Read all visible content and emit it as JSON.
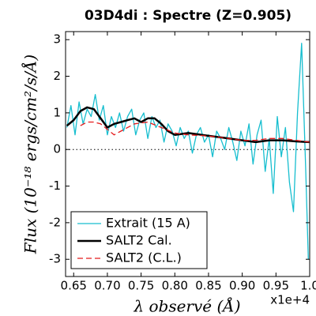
{
  "chart_data": {
    "type": "line",
    "title": "03D4di : Spectre (Z=0.905)",
    "x_label": "λ observé (Å)",
    "y_label": "Flux (10⁻¹⁸ ergs/cm²/s/Å)",
    "x_offset_label": "x1e+4",
    "xlim": [
      0.638,
      1.0
    ],
    "ylim": [
      -3.47,
      3.22
    ],
    "xticks": [
      0.65,
      {
        "value": 0.7,
        "label": "0.70"
      },
      0.75,
      {
        "value": 0.8,
        "label": "0.80"
      },
      0.85,
      {
        "value": 0.9,
        "label": "0.90"
      },
      0.95,
      {
        "value": 1,
        "label": "1.0"
      }
    ],
    "yticks": [
      -3,
      -2,
      -1,
      0,
      1,
      2,
      3
    ],
    "hline": 0,
    "legend": "lower left",
    "series": [
      {
        "name": "Extrait (15 A)",
        "color": "#17becf",
        "style": "solid",
        "width": 1.3,
        "x": [
          0.64,
          0.646,
          0.652,
          0.658,
          0.664,
          0.67,
          0.676,
          0.682,
          0.688,
          0.694,
          0.7,
          0.706,
          0.712,
          0.718,
          0.724,
          0.73,
          0.736,
          0.742,
          0.748,
          0.754,
          0.76,
          0.766,
          0.772,
          0.778,
          0.784,
          0.79,
          0.796,
          0.802,
          0.808,
          0.814,
          0.82,
          0.826,
          0.832,
          0.838,
          0.844,
          0.85,
          0.856,
          0.862,
          0.868,
          0.874,
          0.88,
          0.886,
          0.892,
          0.898,
          0.904,
          0.91,
          0.916,
          0.922,
          0.928,
          0.934,
          0.94,
          0.946,
          0.952,
          0.958,
          0.964,
          0.97,
          0.976,
          0.982,
          0.988,
          0.994,
          0.998
        ],
        "values": [
          0.6,
          1.2,
          0.4,
          1.3,
          0.7,
          1.1,
          0.9,
          1.5,
          0.8,
          1.2,
          0.4,
          0.9,
          0.6,
          1.0,
          0.5,
          0.9,
          1.1,
          0.4,
          0.8,
          1.0,
          0.3,
          0.9,
          0.6,
          0.8,
          0.2,
          0.7,
          0.5,
          0.1,
          0.6,
          0.3,
          0.5,
          -0.1,
          0.4,
          0.6,
          0.2,
          0.4,
          -0.2,
          0.5,
          0.3,
          0.0,
          0.6,
          0.2,
          -0.3,
          0.5,
          0.1,
          0.7,
          -0.4,
          0.4,
          0.8,
          -0.6,
          0.3,
          -1.2,
          0.9,
          -0.2,
          0.6,
          -0.9,
          -1.7,
          1.0,
          2.9,
          -0.5,
          -3.0
        ]
      },
      {
        "name": "SALT2 Cal.",
        "color": "#000000",
        "style": "solid",
        "width": 2.5,
        "x": [
          0.64,
          0.65,
          0.66,
          0.67,
          0.68,
          0.69,
          0.7,
          0.71,
          0.72,
          0.73,
          0.74,
          0.75,
          0.76,
          0.77,
          0.78,
          0.79,
          0.8,
          0.82,
          0.84,
          0.86,
          0.88,
          0.9,
          0.92,
          0.94,
          0.96,
          0.98,
          1.0
        ],
        "values": [
          0.65,
          0.8,
          1.05,
          1.15,
          1.1,
          0.85,
          0.6,
          0.7,
          0.75,
          0.8,
          0.85,
          0.75,
          0.85,
          0.85,
          0.7,
          0.5,
          0.4,
          0.45,
          0.4,
          0.35,
          0.3,
          0.25,
          0.2,
          0.25,
          0.25,
          0.22,
          0.2
        ]
      },
      {
        "name": "SALT2 (C.L.)",
        "color": "#e41a1c",
        "style": "dashed",
        "width": 1.3,
        "x": [
          0.66,
          0.67,
          0.68,
          0.69,
          0.7,
          0.71,
          0.72,
          0.74,
          0.76,
          0.78,
          0.8,
          0.82,
          0.84,
          0.86,
          0.88,
          0.9,
          0.92,
          0.94,
          0.96,
          0.98,
          1.0
        ],
        "values": [
          0.65,
          0.75,
          0.75,
          0.7,
          0.55,
          0.4,
          0.5,
          0.7,
          0.75,
          0.6,
          0.45,
          0.4,
          0.38,
          0.35,
          0.3,
          0.25,
          0.25,
          0.3,
          0.3,
          0.25,
          0.2
        ]
      }
    ]
  }
}
